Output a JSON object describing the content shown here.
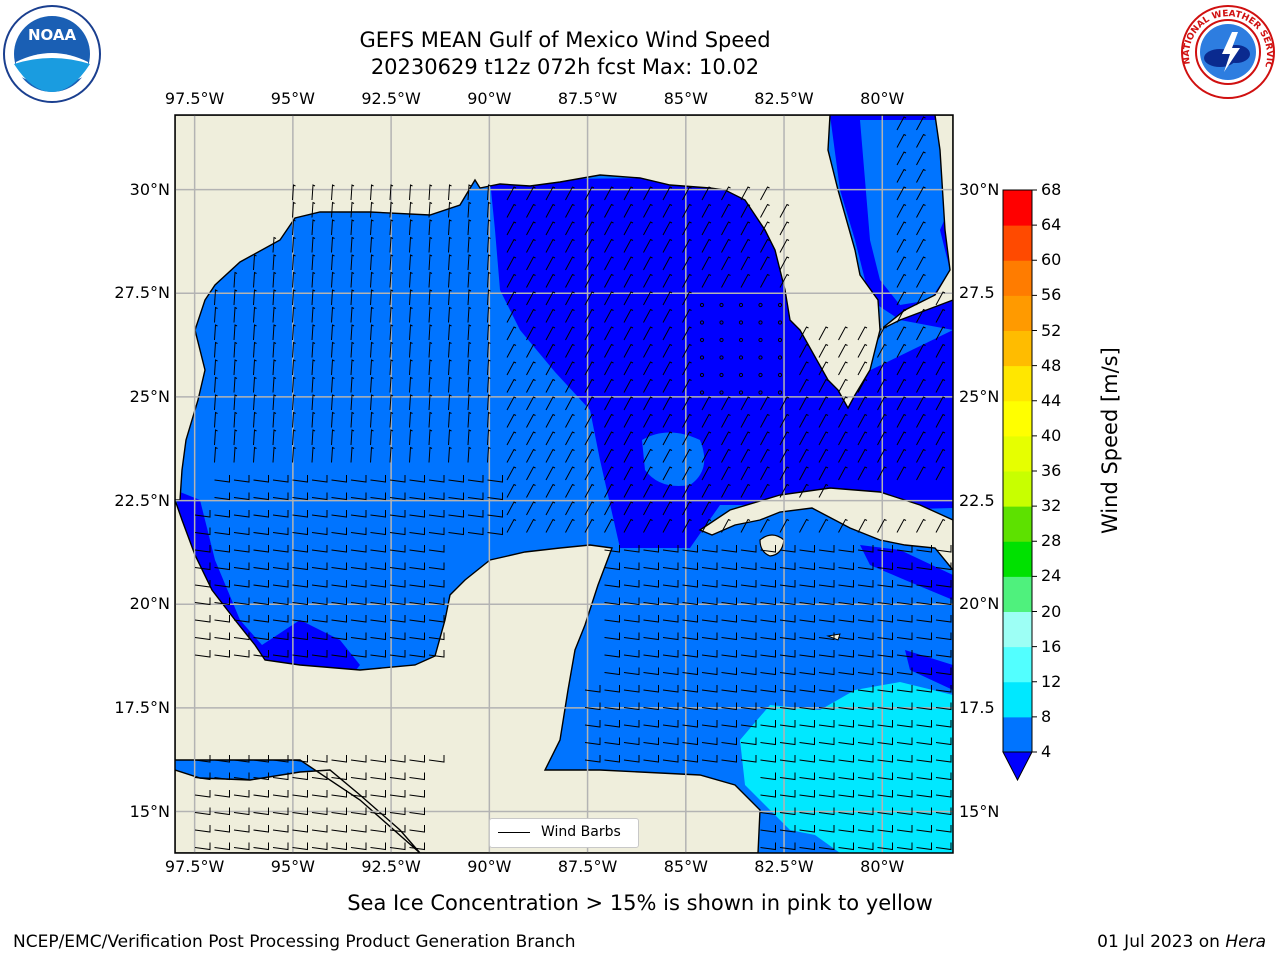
{
  "title": {
    "line1": "GEFS MEAN Gulf of Mexico Wind Speed",
    "line2": "20230629 t12z 072h fcst   Max: 10.02"
  },
  "map": {
    "lon_ticks": [
      "97.5°W",
      "95°W",
      "92.5°W",
      "90°W",
      "87.5°W",
      "85°W",
      "82.5°W",
      "80°W"
    ],
    "lat_ticks": [
      "30°N",
      "27.5°N",
      "25°N",
      "22.5°N",
      "20°N",
      "17.5°N",
      "15°N"
    ],
    "lat_ticks_right": [
      "30°N",
      "27.5",
      "25°N",
      "22.5",
      "20°N",
      "17.5",
      "15°N"
    ],
    "extent": {
      "lon_min": -98,
      "lon_max": -78.2,
      "lat_min": 14,
      "lat_max": 31.8
    },
    "colors": {
      "land": "#efeedc",
      "grid": "#b3b3b3",
      "frame": "#000000"
    }
  },
  "legend": {
    "label": "Wind Barbs"
  },
  "colorbar": {
    "title": "Wind Speed [m/s]",
    "levels": [
      4,
      8,
      12,
      16,
      20,
      24,
      28,
      32,
      36,
      40,
      44,
      48,
      52,
      56,
      60,
      64,
      68
    ],
    "colors": [
      "#0074ff",
      "#00e8ff",
      "#52ffff",
      "#9dfff5",
      "#4ff17d",
      "#00e100",
      "#5de100",
      "#c8ff00",
      "#e6ff00",
      "#ffff00",
      "#ffe700",
      "#ffbc00",
      "#ff9a00",
      "#ff7c00",
      "#ff4a00",
      "#ff0000"
    ],
    "under_color": "#0000ff"
  },
  "chart_data": {
    "type": "heatmap",
    "title": "GEFS MEAN Gulf of Mexico Wind Speed",
    "subtitle": "20230629 t12z 072h fcst   Max: 10.02",
    "units": "m/s",
    "max_value": 10.02,
    "levels": [
      4,
      8,
      12,
      16,
      20,
      24,
      28,
      32,
      36,
      40,
      44,
      48,
      52,
      56,
      60,
      64,
      68
    ],
    "regions": [
      {
        "name": "",
        "range": "< 4",
        "color": "#0000ff"
      },
      {
        "name": "",
        "range": "4-8",
        "color": "#0074ff"
      },
      {
        "name": "",
        "range": "8-12",
        "color": "#00e8ff"
      }
    ]
  },
  "caption": "Sea Ice Concentration > 15% is shown in pink to yellow",
  "footer": {
    "left": "NCEP/EMC/Verification Post Processing Product Generation Branch",
    "right_date": "01 Jul 2023 on",
    "right_host": "Hera"
  },
  "logos": {
    "noaa": {
      "text": "NOAA",
      "icon": "noaa-logo-icon"
    },
    "nws": {
      "text": "NATIONAL WEATHER SERVICE",
      "icon": "nws-logo-icon"
    }
  }
}
